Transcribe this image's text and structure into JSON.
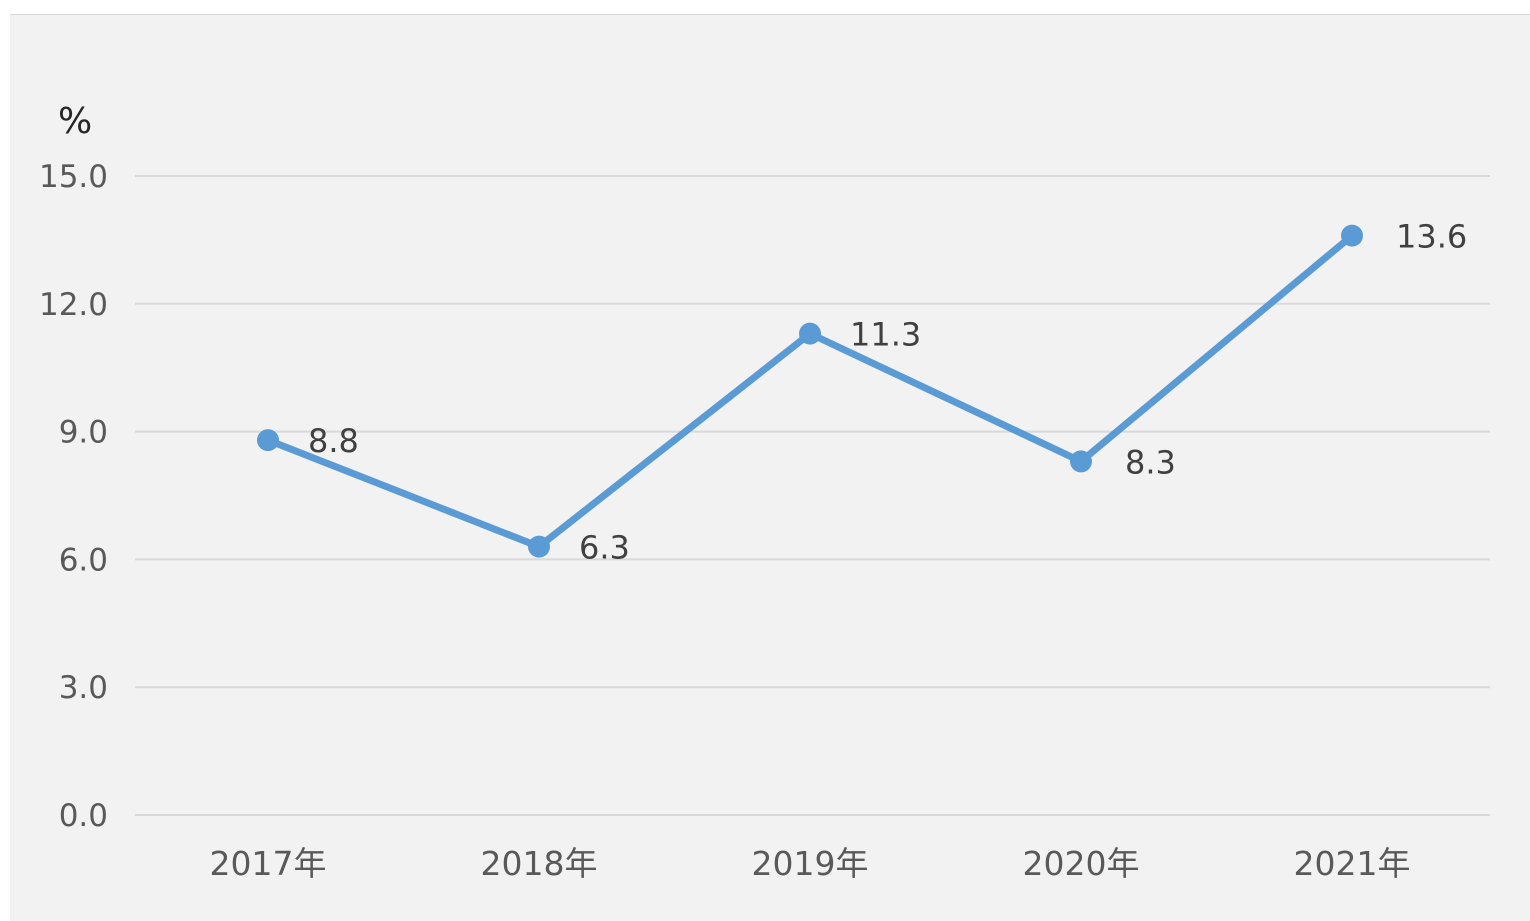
{
  "chart_data": {
    "type": "line",
    "ylabel": "%",
    "ylim": [
      0,
      15
    ],
    "yticks": [
      "0.0",
      "3.0",
      "6.0",
      "9.0",
      "12.0",
      "15.0"
    ],
    "categories": [
      "2017年",
      "2018年",
      "2019年",
      "2020年",
      "2021年"
    ],
    "series": [
      {
        "values": [
          8.8,
          6.3,
          11.3,
          8.3,
          13.6
        ],
        "labels": [
          "8.8",
          "6.3",
          "11.3",
          "8.3",
          "13.6"
        ],
        "color": "#5b9bd5"
      }
    ],
    "grid": true,
    "legend": "none"
  }
}
